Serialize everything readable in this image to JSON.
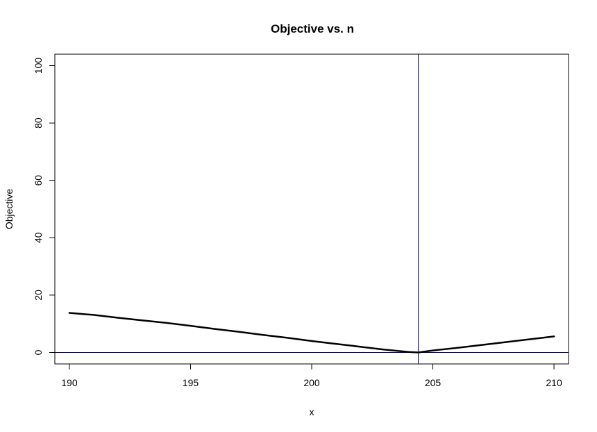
{
  "chart_data": {
    "type": "line",
    "title": "Objective vs. n",
    "xlabel": "x",
    "ylabel": "Objective",
    "xlim": [
      189.4,
      210.6
    ],
    "ylim": [
      -4,
      104
    ],
    "x_ticks": [
      190,
      195,
      200,
      205,
      210
    ],
    "y_ticks": [
      0,
      20,
      40,
      60,
      80,
      100
    ],
    "grid": false,
    "series": [
      {
        "color": "#000000",
        "points": [
          [
            190,
            13.8
          ],
          [
            191,
            13.1
          ],
          [
            192,
            12.1
          ],
          [
            193,
            11.2
          ],
          [
            194,
            10.3
          ],
          [
            195,
            9.3
          ],
          [
            196,
            8.2
          ],
          [
            197,
            7.2
          ],
          [
            198,
            6.1
          ],
          [
            199,
            5.1
          ],
          [
            200,
            4.0
          ],
          [
            201,
            3.0
          ],
          [
            202,
            2.0
          ],
          [
            203,
            1.0
          ],
          [
            204,
            0.2
          ],
          [
            204.4,
            0.0
          ],
          [
            205,
            0.7
          ],
          [
            206,
            1.6
          ],
          [
            207,
            2.6
          ],
          [
            208,
            3.6
          ],
          [
            209,
            4.6
          ],
          [
            210,
            5.6
          ]
        ]
      }
    ],
    "reference_lines": {
      "color": "#00007f",
      "vertical_x": 204.4,
      "horizontal_y": 0
    }
  }
}
